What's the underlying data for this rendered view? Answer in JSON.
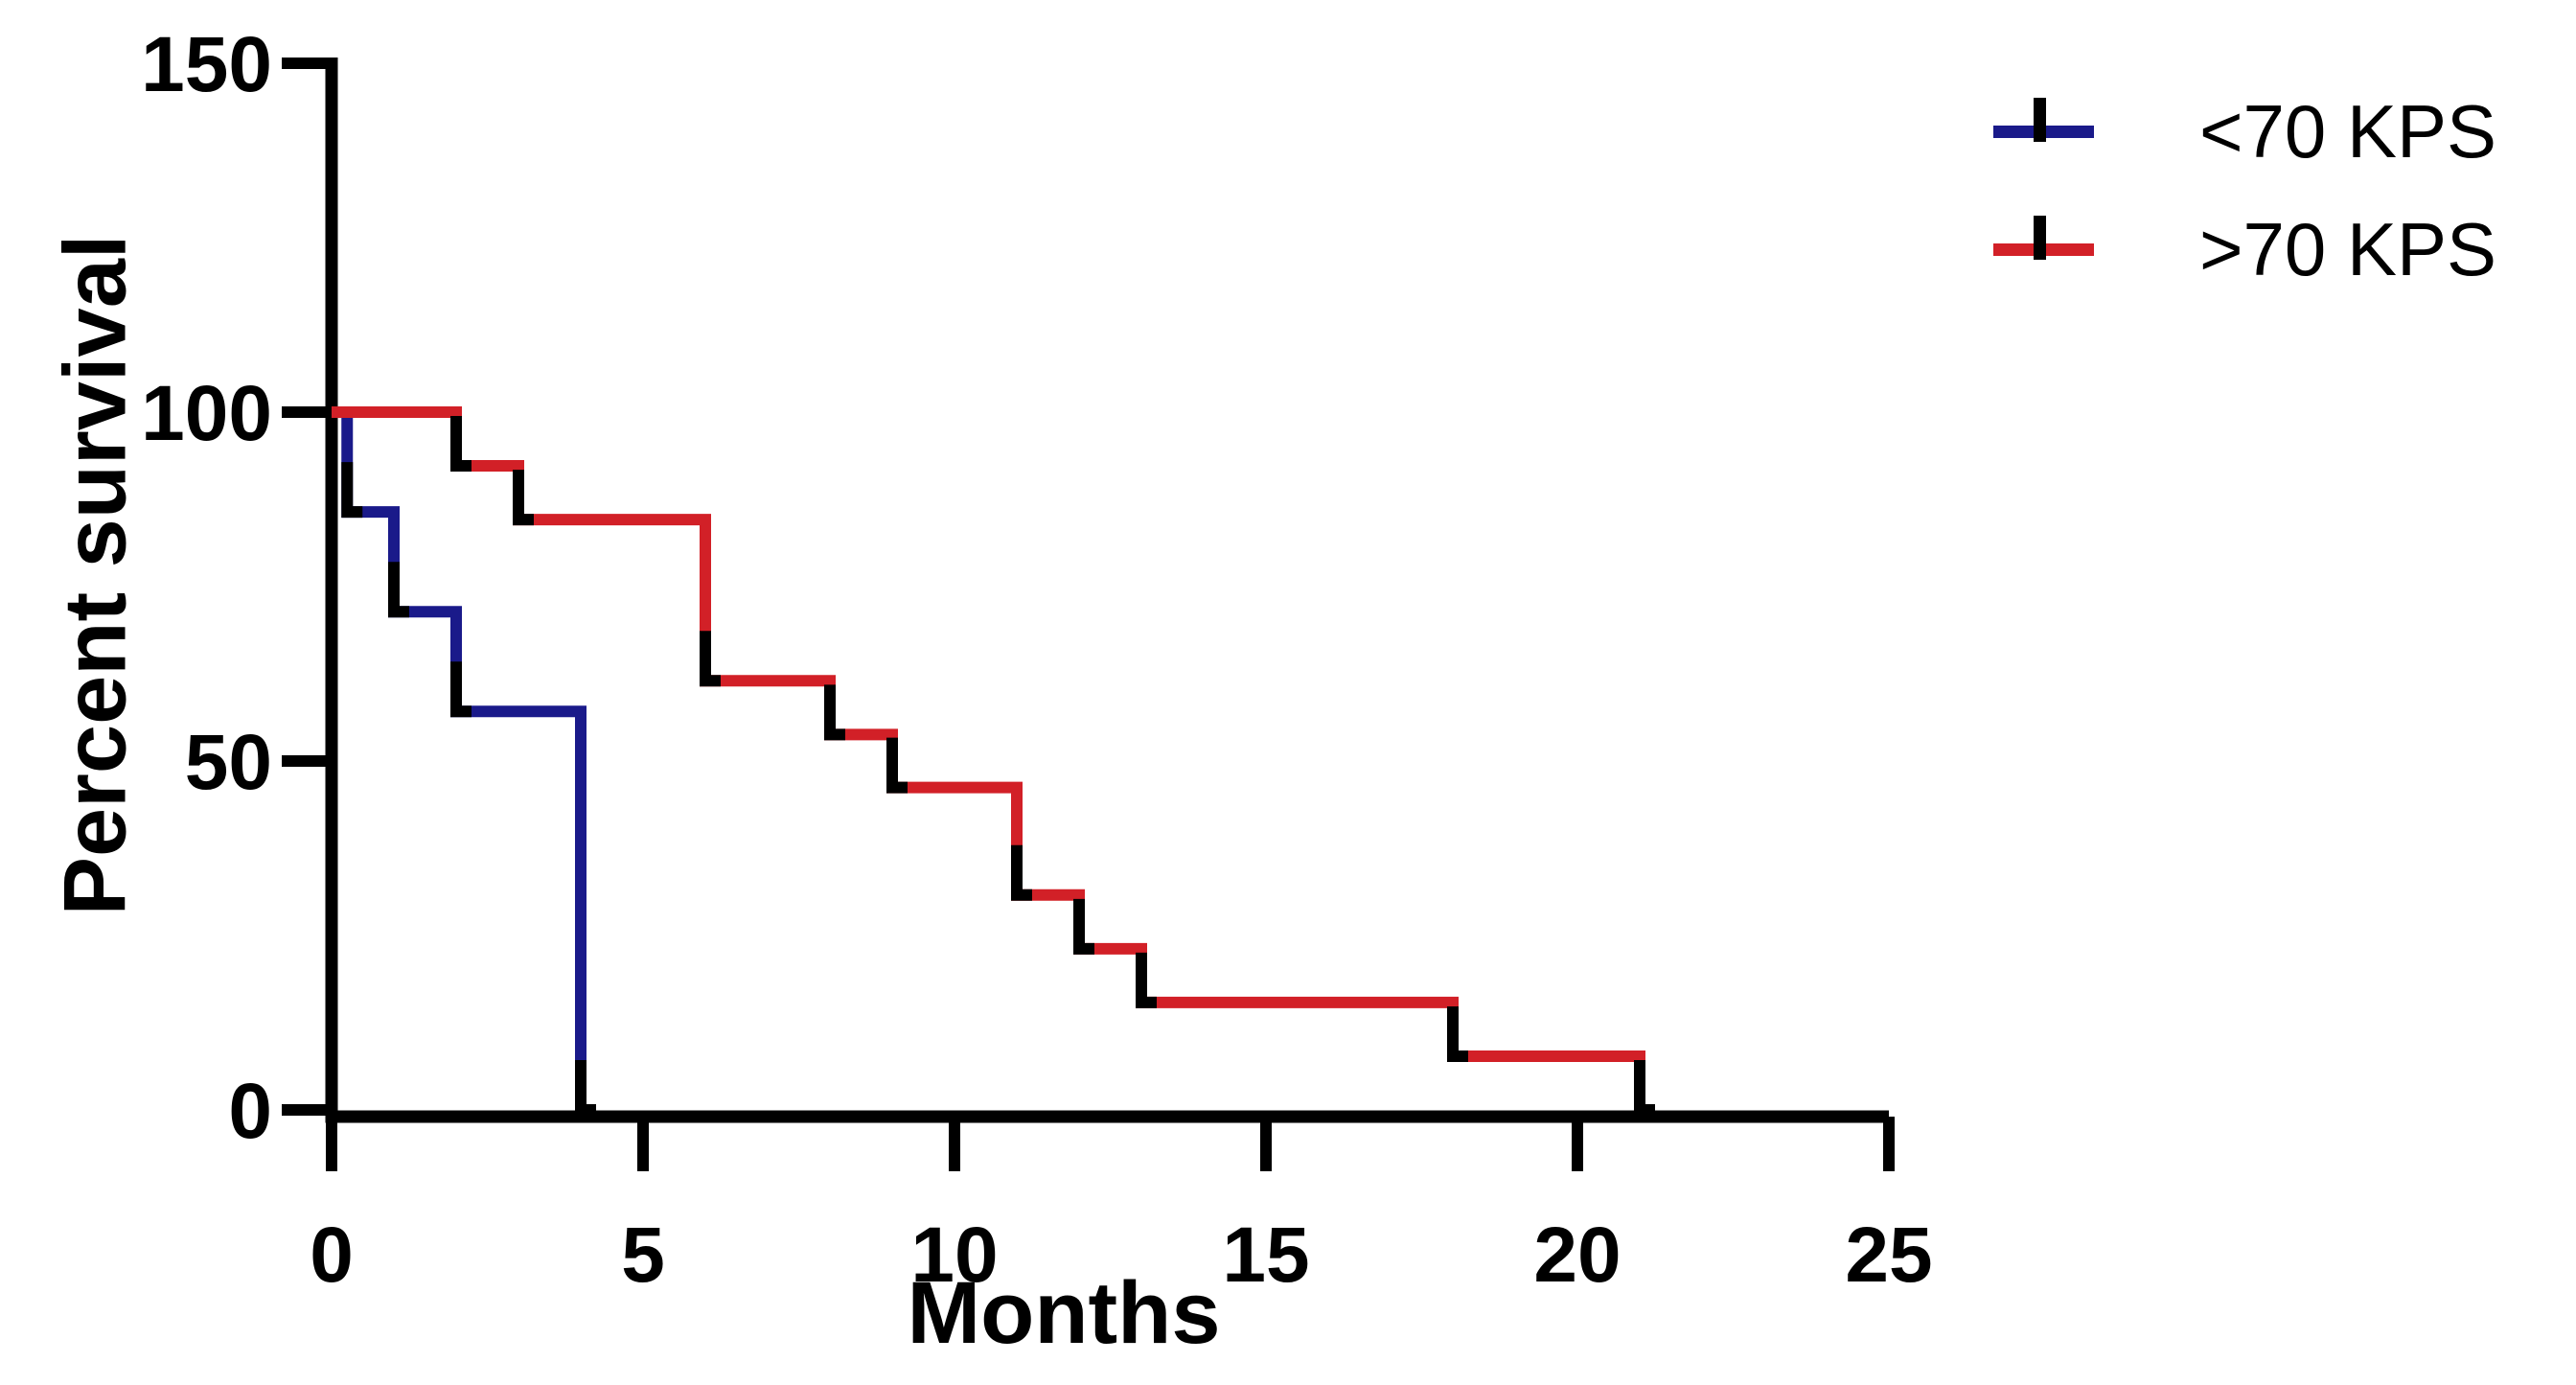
{
  "figure": {
    "background_color": "#ffffff",
    "axis_color": "#000000",
    "xlabel": "Months",
    "ylabel": "Percent survival",
    "legend": [
      {
        "label": "<70 KPS",
        "color": "#1a1a8a",
        "symbol": "line-with-censor-tick"
      },
      {
        "label": ">70 KPS",
        "color": "#d22027",
        "symbol": "line-with-censor-tick"
      }
    ]
  },
  "chart_data": {
    "type": "line",
    "subtype": "kaplan-meier-step",
    "title": "",
    "xlabel": "Months",
    "ylabel": "Percent survival",
    "xlim": [
      0,
      25
    ],
    "ylim": [
      0,
      150
    ],
    "x_ticks": [
      0,
      5,
      10,
      15,
      20,
      25
    ],
    "y_ticks": [
      0,
      50,
      100,
      150
    ],
    "grid": false,
    "legend_position": "top-right",
    "series": [
      {
        "name": "<70 KPS",
        "color": "#1a1a8a",
        "steps": [
          {
            "month": 0,
            "percent": 100
          },
          {
            "month": 0.25,
            "percent": 85.7
          },
          {
            "month": 1,
            "percent": 71.4
          },
          {
            "month": 2,
            "percent": 57.1
          },
          {
            "month": 4,
            "percent": 0
          }
        ]
      },
      {
        "name": ">70 KPS",
        "color": "#d22027",
        "steps": [
          {
            "month": 0,
            "percent": 100
          },
          {
            "month": 2,
            "percent": 92.3
          },
          {
            "month": 3,
            "percent": 84.6
          },
          {
            "month": 6,
            "percent": 61.5
          },
          {
            "month": 8,
            "percent": 53.8
          },
          {
            "month": 9,
            "percent": 46.2
          },
          {
            "month": 11,
            "percent": 30.8
          },
          {
            "month": 12,
            "percent": 23.1
          },
          {
            "month": 13,
            "percent": 15.4
          },
          {
            "month": 18,
            "percent": 7.7
          },
          {
            "month": 21,
            "percent": 0
          }
        ]
      }
    ]
  }
}
